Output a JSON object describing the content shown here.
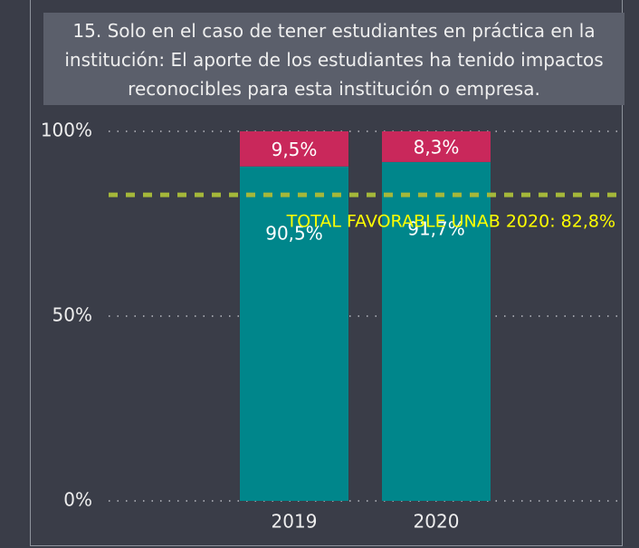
{
  "chart_data": {
    "type": "stacked_bar",
    "title": "15. Solo en el caso de tener estudiantes en práctica en la institución: El aporte de los estudiantes ha tenido impactos reconocibles para esta institución o empresa.",
    "categories": [
      "2019",
      "2020"
    ],
    "series": [
      {
        "color": "#00868b",
        "values": [
          90.5,
          91.7
        ],
        "value_labels": [
          "90,5%",
          "91,7%"
        ]
      },
      {
        "color": "#c9285b",
        "values": [
          9.5,
          8.3
        ],
        "value_labels": [
          "9,5%",
          "8,3%"
        ]
      }
    ],
    "ylim": [
      0,
      100
    ],
    "yticks": [
      {
        "value": 0,
        "label": "0%"
      },
      {
        "value": 50,
        "label": "50%"
      },
      {
        "value": 100,
        "label": "100%"
      }
    ],
    "grid": true,
    "reference_line": {
      "value": 82.8,
      "label": "TOTAL FAVORABLE UNAB 2020: 82,8%",
      "color": "#a5b83a",
      "label_color": "#ffff00"
    }
  }
}
